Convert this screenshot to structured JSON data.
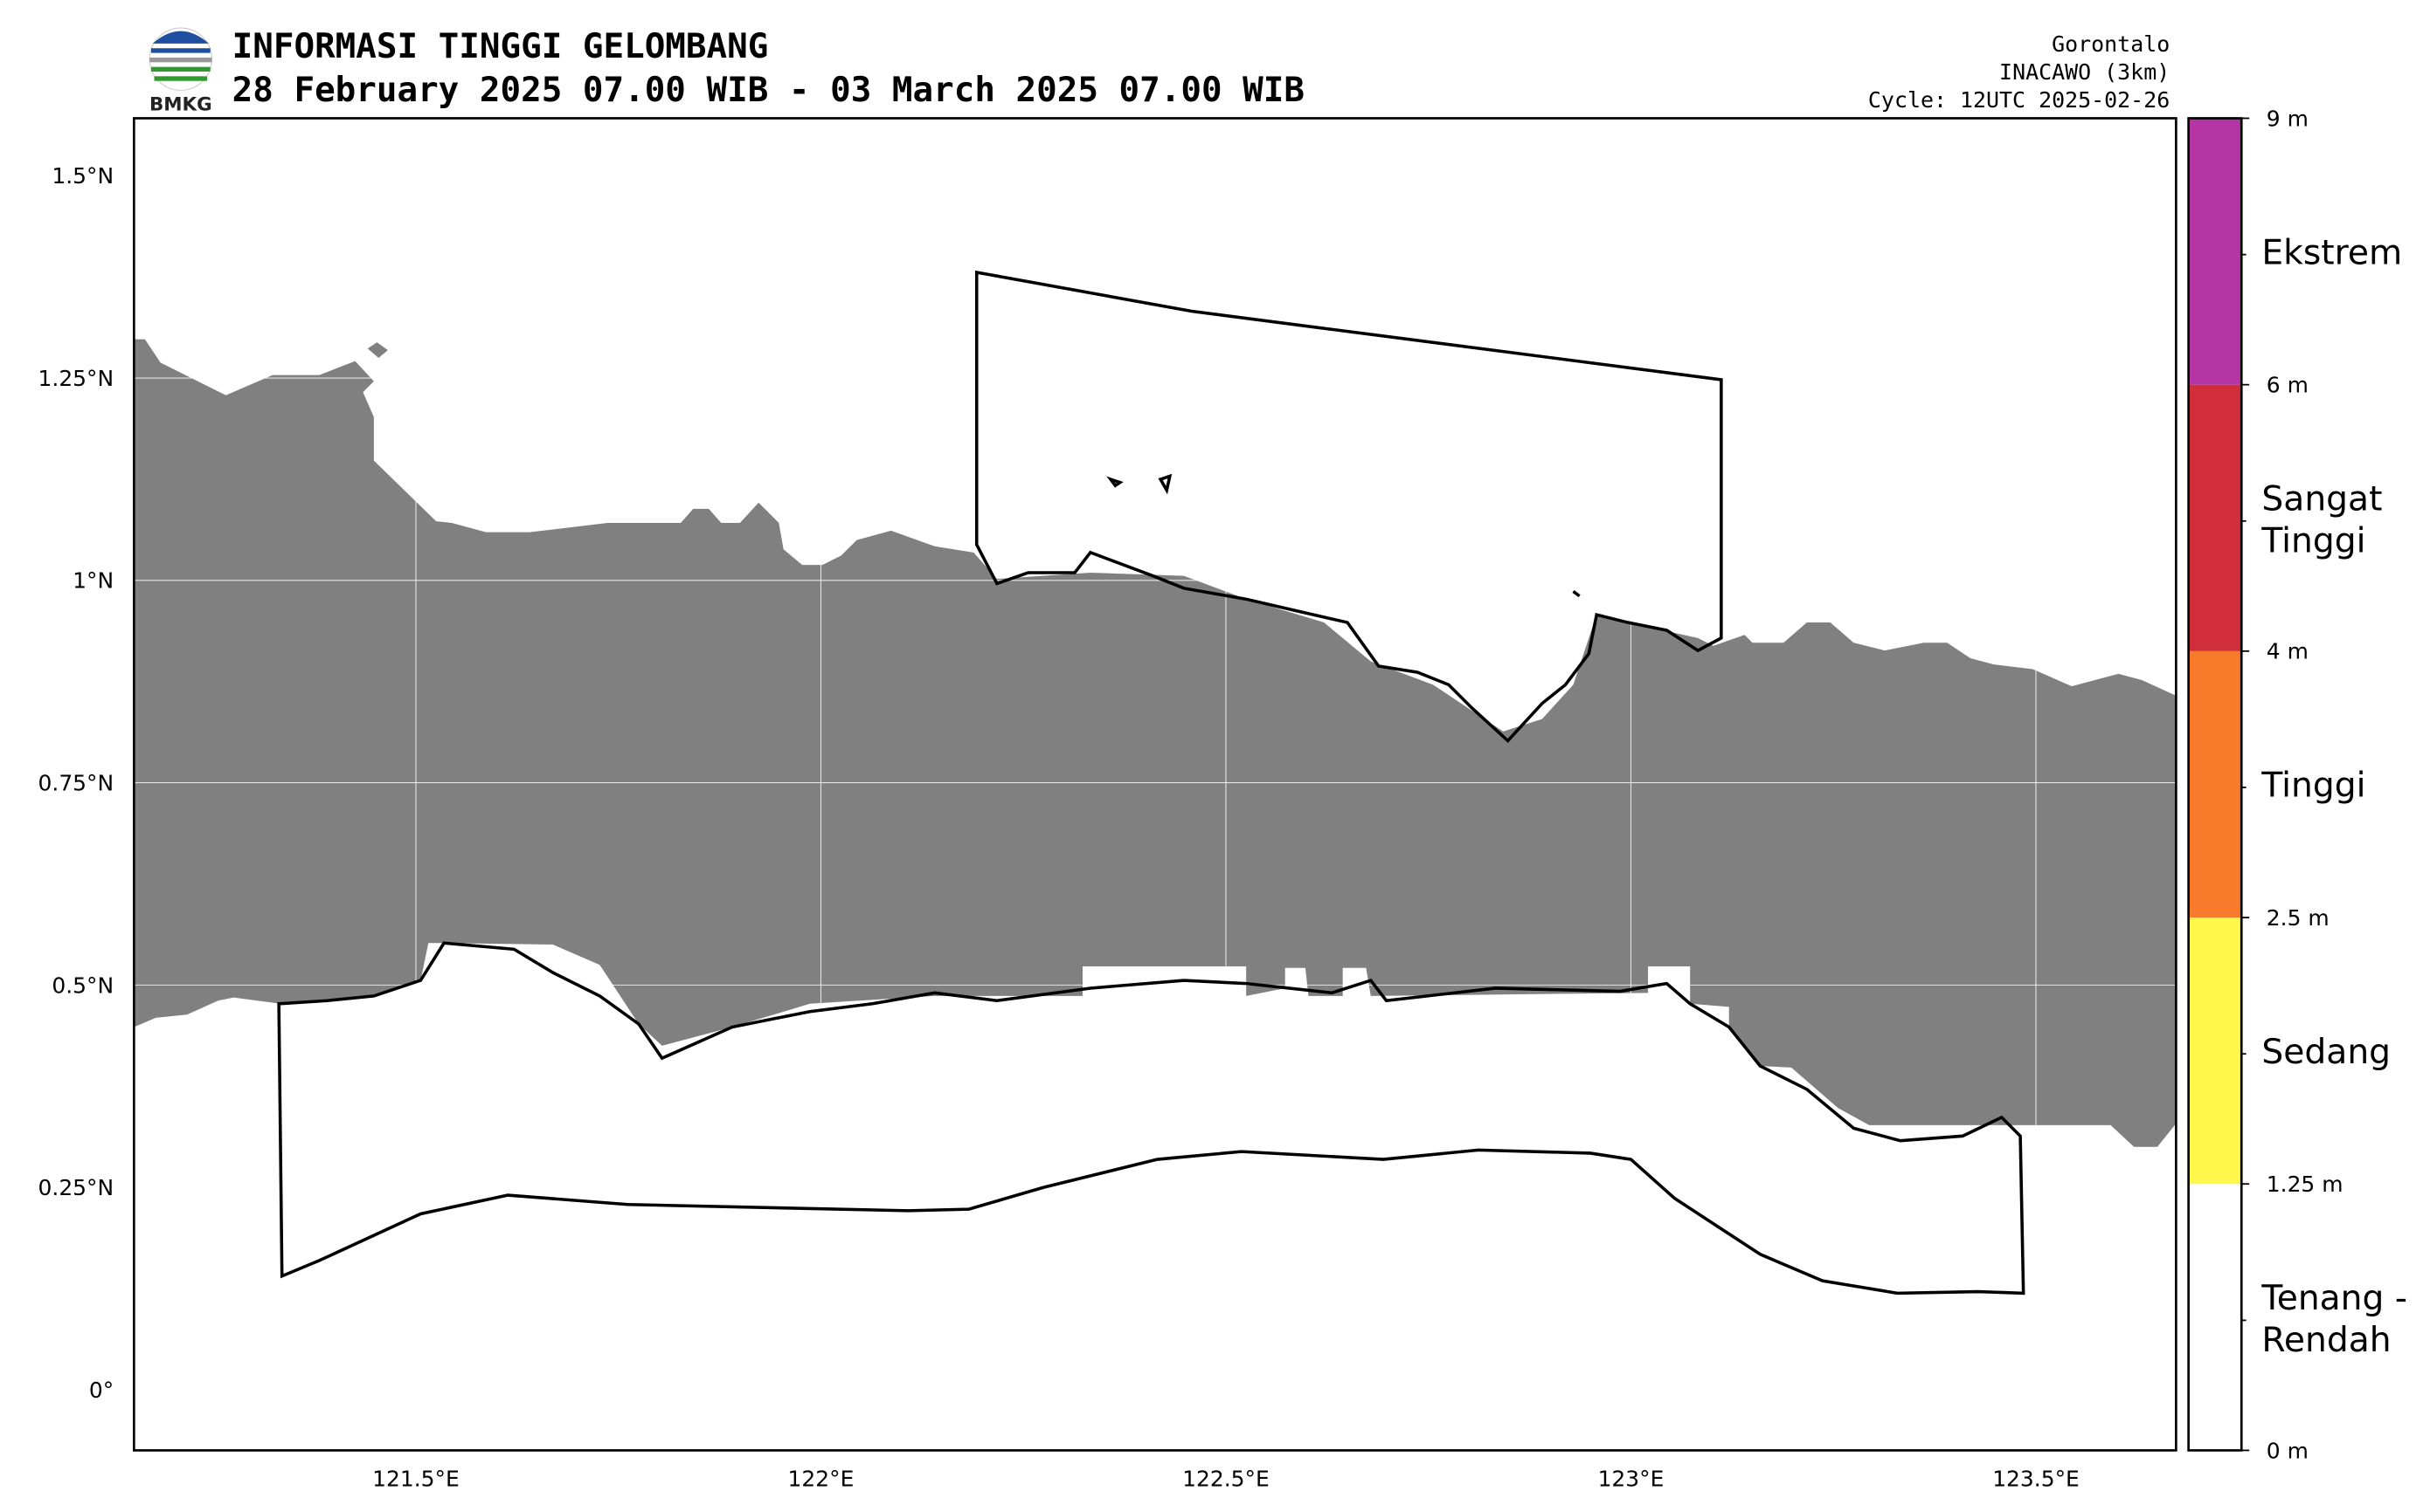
{
  "header": {
    "title": "INFORMASI TINGGI GELOMBANG",
    "subtitle": "28 February 2025 07.00 WIB - 03 March 2025 07.00 WIB",
    "logo_text": "BMKG",
    "region": "Gorontalo",
    "model": "INACAWO (3km)",
    "cycle": "Cycle: 12UTC 2025-02-26"
  },
  "map": {
    "xlim": [
      121.152,
      123.673
    ],
    "ylim": [
      -0.075,
      1.571
    ],
    "lon_ticks": [
      {
        "value": 121.5,
        "label": "121.5°E"
      },
      {
        "value": 122,
        "label": "122°E"
      },
      {
        "value": 122.5,
        "label": "122.5°E"
      },
      {
        "value": 123,
        "label": "123°E"
      },
      {
        "value": 123.5,
        "label": "123.5°E"
      }
    ],
    "lat_ticks": [
      {
        "value": 0,
        "label": "0°"
      },
      {
        "value": 0.25,
        "label": "0.25°N"
      },
      {
        "value": 0.5,
        "label": "0.5°N"
      },
      {
        "value": 0.75,
        "label": "0.75°N"
      },
      {
        "value": 1,
        "label": "1°N"
      },
      {
        "value": 1.25,
        "label": "1.25°N"
      },
      {
        "value": 1.5,
        "label": "1.5°N"
      }
    ]
  },
  "colorbar": {
    "ticks": [
      {
        "value": 0,
        "label": "0 m"
      },
      {
        "value": 1.25,
        "label": "1.25 m"
      },
      {
        "value": 2.5,
        "label": "2.5 m"
      },
      {
        "value": 4,
        "label": "4 m"
      },
      {
        "value": 6,
        "label": "6 m"
      },
      {
        "value": 9,
        "label": "9 m"
      }
    ],
    "classes": [
      {
        "lines": [
          "Tenang -",
          "Rendah"
        ],
        "color": "#ffffff"
      },
      {
        "lines": [
          "Sedang"
        ],
        "color": "#fff84a"
      },
      {
        "lines": [
          "Tinggi"
        ],
        "color": "#f77b2a"
      },
      {
        "lines": [
          "Sangat",
          "Tinggi"
        ],
        "color": "#d02e3a"
      },
      {
        "lines": [
          "Ekstrem"
        ],
        "color": "#b535a5"
      }
    ]
  }
}
